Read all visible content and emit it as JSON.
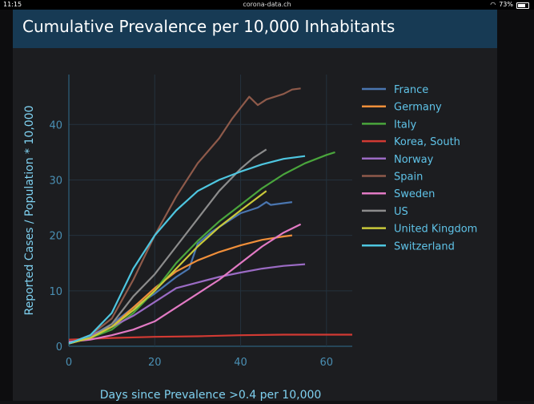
{
  "status": {
    "time": "11:15",
    "url": "corona-data.ch",
    "battery": "73%"
  },
  "header": {
    "title": "Cumulative Prevalence per 10,000 Inhabitants"
  },
  "chart_data": {
    "type": "line",
    "title": "Cumulative Prevalence per 10,000 Inhabitants",
    "xlabel": "Days since Prevalence >0.4 per 10,000",
    "ylabel": "Reported Cases / Population * 10,000",
    "xlim": [
      0,
      66
    ],
    "ylim": [
      0,
      49
    ],
    "xticks": [
      0,
      20,
      40,
      60
    ],
    "yticks": [
      0,
      10,
      20,
      30,
      40
    ],
    "series": [
      {
        "name": "France",
        "color": "#4a76b0",
        "x": [
          0,
          5,
          10,
          15,
          20,
          25,
          28,
          30,
          33,
          36,
          40,
          44,
          46,
          47,
          52
        ],
        "y": [
          0.5,
          1.8,
          4,
          7,
          9.5,
          12.5,
          14,
          18.5,
          20.5,
          22,
          24,
          25,
          26,
          25.5,
          26
        ]
      },
      {
        "name": "Germany",
        "color": "#f08f3a",
        "x": [
          0,
          5,
          10,
          15,
          20,
          25,
          30,
          35,
          40,
          45,
          50,
          52
        ],
        "y": [
          0.5,
          1.5,
          3.5,
          7,
          10.5,
          13.5,
          15.5,
          17,
          18.2,
          19.2,
          19.8,
          20
        ]
      },
      {
        "name": "Italy",
        "color": "#4aa53c",
        "x": [
          0,
          5,
          10,
          15,
          20,
          25,
          30,
          35,
          40,
          45,
          50,
          55,
          60,
          62
        ],
        "y": [
          0.5,
          1.5,
          3,
          6,
          10,
          15,
          19,
          22.5,
          25.5,
          28.5,
          31,
          33,
          34.5,
          35
        ]
      },
      {
        "name": "Korea, South",
        "color": "#d13a33",
        "x": [
          0,
          10,
          20,
          30,
          40,
          50,
          60,
          66
        ],
        "y": [
          1.2,
          1.5,
          1.7,
          1.8,
          2,
          2.1,
          2.1,
          2.1
        ]
      },
      {
        "name": "Norway",
        "color": "#9b6bc4",
        "x": [
          0,
          5,
          10,
          15,
          20,
          25,
          30,
          35,
          40,
          45,
          50,
          55
        ],
        "y": [
          0.5,
          2,
          3.5,
          5.5,
          8,
          10.5,
          11.5,
          12.5,
          13.3,
          14,
          14.5,
          14.8
        ]
      },
      {
        "name": "Spain",
        "color": "#8e5a4a",
        "x": [
          0,
          5,
          10,
          15,
          20,
          25,
          30,
          35,
          38,
          40,
          42,
          44,
          45,
          46,
          50,
          52,
          54
        ],
        "y": [
          0.5,
          2,
          5,
          12,
          20,
          27,
          33,
          37.5,
          41,
          43,
          45,
          43.5,
          44,
          44.5,
          45.5,
          46.3,
          46.5
        ]
      },
      {
        "name": "Sweden",
        "color": "#e27ac4",
        "x": [
          0,
          5,
          10,
          15,
          20,
          25,
          30,
          35,
          40,
          45,
          50,
          54
        ],
        "y": [
          0.8,
          1.2,
          2,
          3,
          4.5,
          7,
          9.5,
          12,
          15,
          18,
          20.5,
          22
        ]
      },
      {
        "name": "US",
        "color": "#8c8c8c",
        "x": [
          0,
          5,
          10,
          15,
          20,
          25,
          30,
          35,
          40,
          43,
          46
        ],
        "y": [
          0.5,
          1.5,
          4,
          9,
          13,
          18,
          23,
          28,
          32,
          34,
          35.5
        ]
      },
      {
        "name": "United Kingdom",
        "color": "#c9c93a",
        "x": [
          0,
          5,
          10,
          15,
          20,
          25,
          30,
          35,
          40,
          46
        ],
        "y": [
          0.5,
          1.5,
          3.5,
          6.5,
          10,
          14,
          18,
          21.5,
          24.5,
          28
        ]
      },
      {
        "name": "Switzerland",
        "color": "#4ec6e0",
        "x": [
          0,
          5,
          10,
          15,
          20,
          25,
          30,
          35,
          40,
          45,
          50,
          55
        ],
        "y": [
          0.5,
          2,
          6,
          14,
          20,
          24.5,
          28,
          30,
          31.5,
          32.8,
          33.8,
          34.3
        ]
      }
    ]
  }
}
